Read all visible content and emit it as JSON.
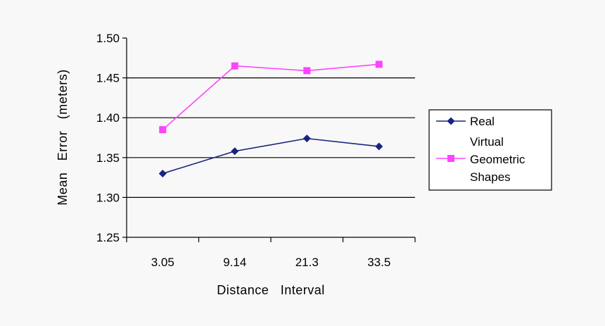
{
  "chart_data": {
    "type": "line",
    "title": "",
    "xlabel": "Distance   Interval",
    "ylabel": "Mean   Error   (meters)",
    "categories": [
      "3.05",
      "9.14",
      "21.3",
      "33.5"
    ],
    "ylim": [
      1.25,
      1.5
    ],
    "yticks": [
      "1.25",
      "1.30",
      "1.35",
      "1.40",
      "1.45",
      "1.50"
    ],
    "grid": "horizontal",
    "legend_position": "right",
    "series": [
      {
        "name": "Real",
        "legend_lines": [
          "Real"
        ],
        "color": "#1a237e",
        "marker": "diamond",
        "values": [
          1.33,
          1.358,
          1.374,
          1.364
        ]
      },
      {
        "name": "Virtual Geometric Shapes",
        "legend_lines": [
          "Virtual",
          "Geometric",
          "Shapes"
        ],
        "color": "#ff44ff",
        "marker": "square",
        "values": [
          1.385,
          1.465,
          1.459,
          1.467
        ]
      }
    ]
  }
}
